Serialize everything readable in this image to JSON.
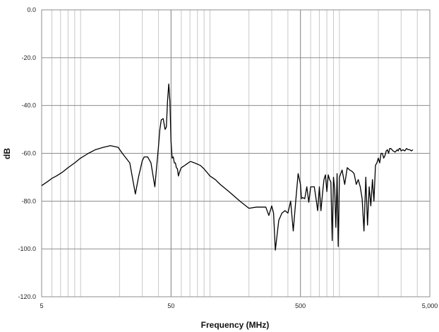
{
  "chart_data": {
    "type": "line",
    "title": "",
    "xlabel": "Frequency (MHz)",
    "ylabel": "dB",
    "x_scale": "log",
    "xlim": [
      5,
      5000
    ],
    "ylim": [
      -120,
      0
    ],
    "x_ticks": [
      5,
      50,
      500,
      5000
    ],
    "x_tick_labels": [
      "5",
      "50",
      "500",
      "5,000"
    ],
    "y_ticks": [
      0,
      -20,
      -40,
      -60,
      -80,
      -100,
      -120
    ],
    "y_tick_labels": [
      "0.0",
      "-20.0",
      "-40.0",
      "-60.0",
      "-80.0",
      "-100.0",
      "-120.0"
    ],
    "grid": {
      "major": true,
      "minor_x": true
    },
    "legend": "none",
    "line_color": "#000000",
    "series": [
      {
        "x": [
          5,
          5.5,
          6,
          6.5,
          7.2,
          8,
          9,
          10,
          11.5,
          13,
          15,
          17,
          19.5,
          21,
          24,
          26.5,
          28,
          30,
          31,
          33,
          35,
          37.5,
          40,
          41,
          42,
          43.5,
          45,
          46,
          47,
          48,
          49,
          50,
          51,
          52,
          53,
          54,
          55,
          56,
          57,
          58,
          60,
          62,
          64,
          66,
          68,
          70,
          72,
          74,
          76,
          78,
          80,
          82,
          84,
          86,
          88,
          90,
          92,
          95,
          100,
          110,
          120,
          140,
          170,
          200,
          230,
          255,
          270,
          285,
          300,
          310,
          320,
          340,
          360,
          380,
          400,
          420,
          440,
          460,
          480,
          500,
          510,
          520,
          540,
          560,
          580,
          600,
          620,
          640,
          660,
          680,
          700,
          720,
          740,
          760,
          780,
          800,
          820,
          840,
          860,
          880,
          900,
          920,
          940,
          960,
          980,
          1000,
          1050,
          1100,
          1150,
          1200,
          1250,
          1300,
          1350,
          1400,
          1450,
          1500,
          1550,
          1600,
          1650,
          1700,
          1750,
          1800,
          1850,
          1900,
          1950,
          2000,
          2050,
          2100,
          2150,
          2200,
          2250,
          2300,
          2350,
          2400,
          2450,
          2500,
          2600,
          2700,
          2750,
          2800,
          2850,
          2900,
          2950,
          3000,
          3100,
          3200,
          3300,
          3400,
          3500,
          3600,
          3700
        ],
        "y": [
          -73.5,
          -72,
          -70.5,
          -69.5,
          -68,
          -66,
          -64,
          -62,
          -60,
          -58.5,
          -57.5,
          -56.8,
          -57.5,
          -60,
          -64,
          -77,
          -70,
          -63,
          -61.5,
          -61.5,
          -64,
          -74,
          -57,
          -50,
          -46,
          -45.5,
          -50,
          -49,
          -38,
          -31,
          -38,
          -55,
          -62,
          -61.5,
          -64,
          -64,
          -66,
          -66.5,
          -69.5,
          -68,
          -66,
          -65.5,
          -65,
          -64.5,
          -64,
          -63.5,
          -63.5,
          -63.8,
          -64,
          -64.3,
          -64.5,
          -64.8,
          -65,
          -65.5,
          -66,
          -66.5,
          -67.2,
          -68,
          -69.5,
          -71,
          -73,
          -76,
          -80,
          -83,
          -82.5,
          -82.5,
          -82.5,
          -86,
          -82,
          -85,
          -100.5,
          -88,
          -85,
          -84,
          -85,
          -80,
          -92.5,
          -80,
          -68.5,
          -73,
          -79,
          -78.5,
          -79,
          -74,
          -80.5,
          -74,
          -74,
          -74,
          -79,
          -84,
          -74,
          -84,
          -77,
          -71,
          -69,
          -76,
          -69,
          -71,
          -72,
          -96.5,
          -70,
          -75,
          -91,
          -68.5,
          -99,
          -70,
          -67,
          -73,
          -66,
          -67,
          -67.5,
          -68.5,
          -73,
          -71,
          -74,
          -79,
          -92.5,
          -70,
          -90,
          -74,
          -82,
          -71,
          -80,
          -65,
          -64,
          -62,
          -64,
          -60,
          -60,
          -62,
          -61,
          -59,
          -58.5,
          -60,
          -58,
          -58,
          -59,
          -59.5,
          -59,
          -58.5,
          -59,
          -58,
          -58,
          -59,
          -58.5,
          -59,
          -58,
          -58.5,
          -58.5,
          -59,
          -58.5
        ]
      }
    ]
  }
}
